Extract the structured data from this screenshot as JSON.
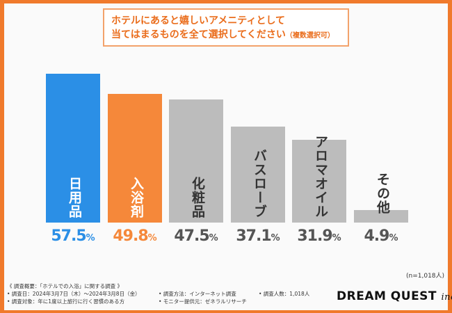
{
  "header": {
    "title_line1": "ホテルにあると嬉しいアメニティとして",
    "title_line2": "当てはまるものを全て選択してください",
    "title_note": "（複数選択可）"
  },
  "chart_data": {
    "type": "bar",
    "title": "ホテルにあると嬉しいアメニティとして当てはまるものを全て選択してください（複数選択可）",
    "categories": [
      "日用品",
      "入浴剤",
      "化粧品",
      "バスローブ",
      "アロマオイル",
      "その他"
    ],
    "values": [
      57.5,
      49.8,
      47.5,
      37.1,
      31.9,
      4.9
    ],
    "value_labels": [
      {
        "num": "57.5",
        "unit": "%"
      },
      {
        "num": "49.8",
        "unit": "%"
      },
      {
        "num": "47.5",
        "unit": "%"
      },
      {
        "num": "37.1",
        "unit": "%"
      },
      {
        "num": "31.9",
        "unit": "%"
      },
      {
        "num": "4.9",
        "unit": "%"
      }
    ],
    "colors": [
      "#2b8fe6",
      "#f5883a",
      "#bcbcbc",
      "#bcbcbc",
      "#bcbcbc",
      "#bcbcbc"
    ],
    "value_colors": [
      "#2b8fe6",
      "#f5883a",
      "#555555",
      "#555555",
      "#555555",
      "#555555"
    ],
    "ylim": [
      0,
      60
    ],
    "xlabel": "",
    "ylabel": ""
  },
  "sample_note": "(n=1,018人)",
  "footer": {
    "overview": "《 調査概要：「ホテルでの入浴」に関する調査 》",
    "date": "• 調査日：2024年3月7日（木）～2024年3月8日（金）",
    "target": "• 調査対象：年に1度以上旅行に行く習慣のある方",
    "method": "• 調査方法：インターネット調査",
    "provider": "• モニター提供元：ゼネラルリサーチ",
    "count": "• 調査人数：1,018人"
  },
  "logo": {
    "main": "DREAM QUEST",
    "sub": "inc."
  },
  "accent_color": "#f07a2c"
}
